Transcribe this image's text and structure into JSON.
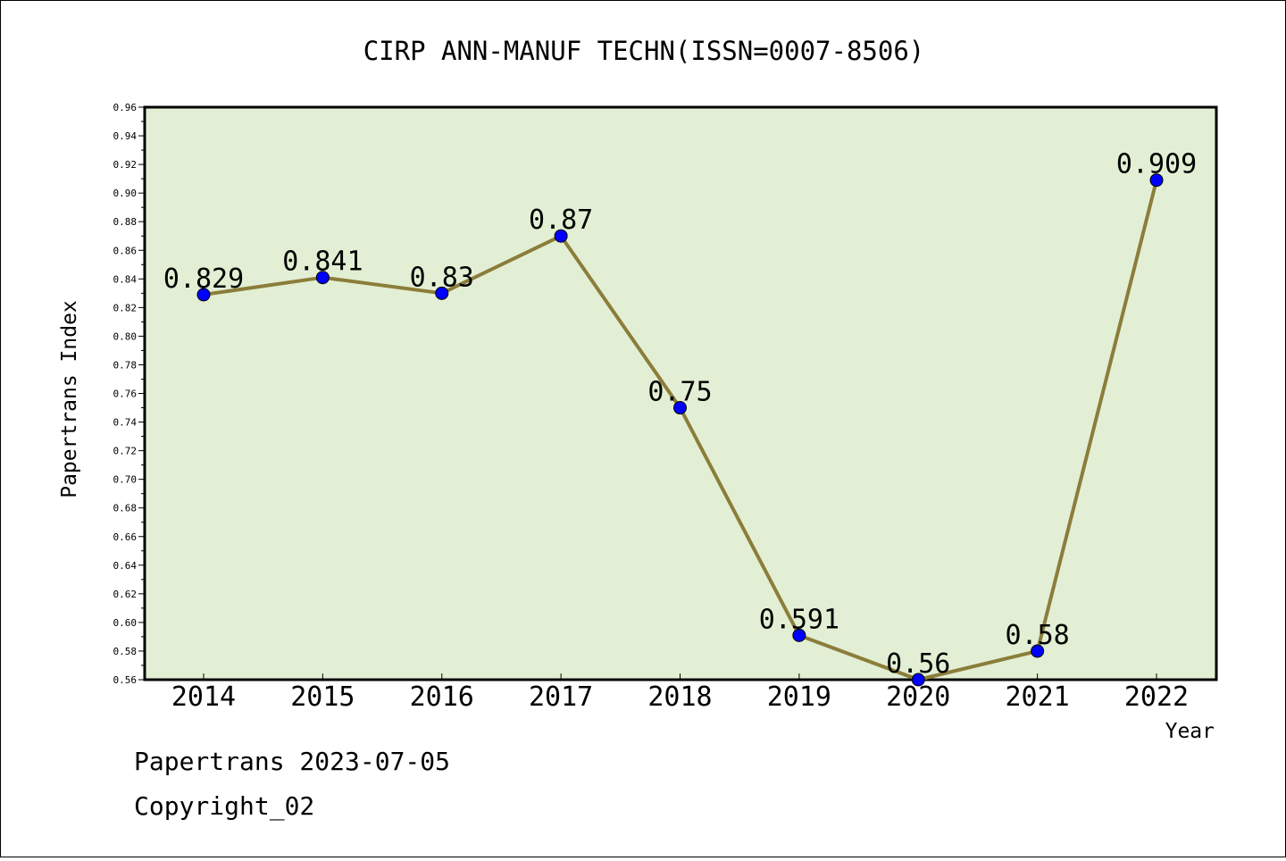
{
  "chart_data": {
    "type": "line",
    "title": "CIRP ANN-MANUF TECHN(ISSN=0007-8506)",
    "xlabel": "Year",
    "ylabel": "Papertrans Index",
    "categories": [
      "2014",
      "2015",
      "2016",
      "2017",
      "2018",
      "2019",
      "2020",
      "2021",
      "2022"
    ],
    "series": [
      {
        "values": [
          0.829,
          0.841,
          0.83,
          0.87,
          0.75,
          0.591,
          0.56,
          0.58,
          0.909
        ],
        "labels": [
          "0.829",
          "0.841",
          "0.83",
          "0.87",
          "0.75",
          "0.591",
          "0.56",
          "0.58",
          "0.909"
        ]
      }
    ],
    "ylim": [
      0.56,
      0.96
    ],
    "yticks": [
      "0.56",
      "0.58",
      "0.60",
      "0.62",
      "0.64",
      "0.66",
      "0.68",
      "0.70",
      "0.72",
      "0.74",
      "0.76",
      "0.78",
      "0.80",
      "0.82",
      "0.84",
      "0.86",
      "0.88",
      "0.90",
      "0.92",
      "0.94",
      "0.96"
    ],
    "grid": false,
    "colors": {
      "plot_background": "#e2efd4",
      "line": "#8b7d3a",
      "marker": "#0000ff"
    }
  },
  "footer": {
    "line1": "Papertrans 2023-07-05",
    "line2": "Copyright_02"
  }
}
